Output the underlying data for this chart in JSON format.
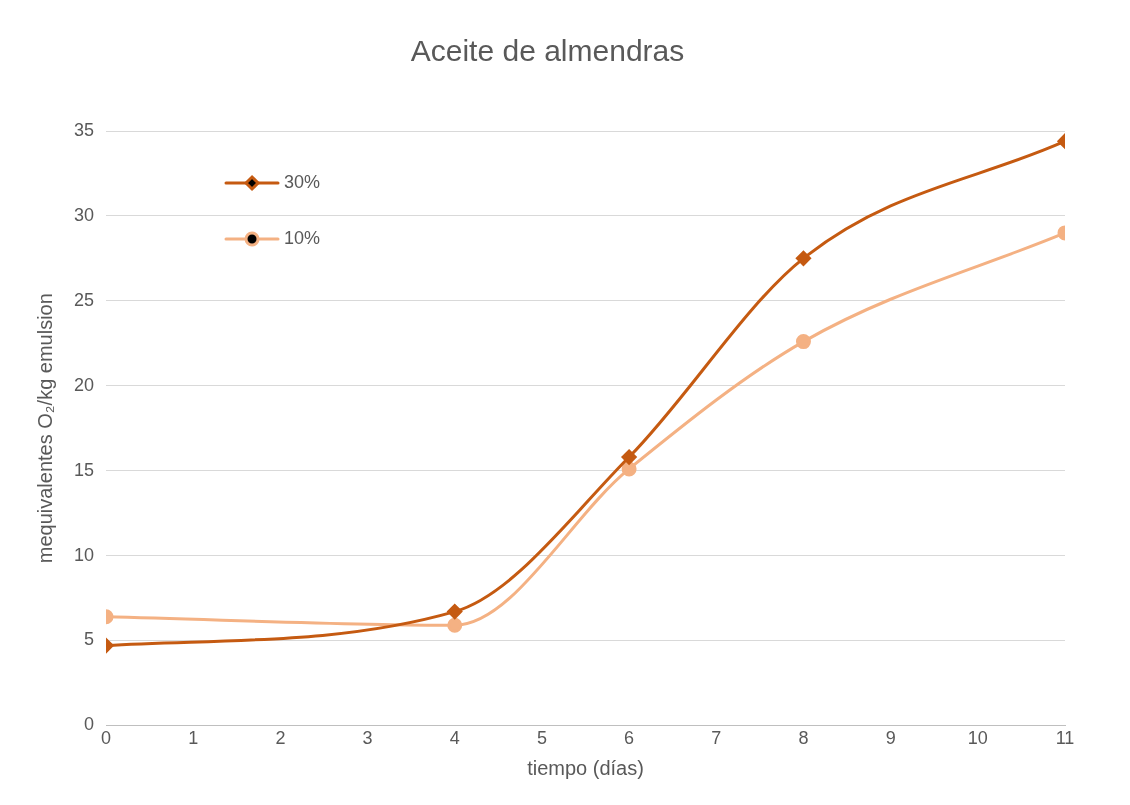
{
  "chart_data": {
    "type": "line",
    "title": "Aceite de almendras",
    "xlabel": "tiempo (días)",
    "ylabel": "mequivalentes O₂/kg emulsion",
    "xlim": [
      0,
      11
    ],
    "xticks": [
      0,
      1,
      2,
      3,
      4,
      5,
      6,
      7,
      8,
      9,
      10,
      11
    ],
    "ylim": [
      0,
      35
    ],
    "yticks": [
      0,
      5,
      10,
      15,
      20,
      25,
      30,
      35
    ],
    "grid": "y",
    "legend": "top left",
    "series": [
      {
        "name": "30%",
        "color": "#c55a11",
        "marker": "diamond",
        "x": [
          0,
          4,
          6,
          8,
          11
        ],
        "values": [
          4.7,
          6.7,
          15.8,
          27.5,
          34.4
        ]
      },
      {
        "name": "10%",
        "color": "#f4b183",
        "marker": "circle",
        "x": [
          0,
          4,
          6,
          8,
          11
        ],
        "values": [
          6.4,
          5.9,
          15.1,
          22.6,
          29.0
        ]
      }
    ]
  }
}
